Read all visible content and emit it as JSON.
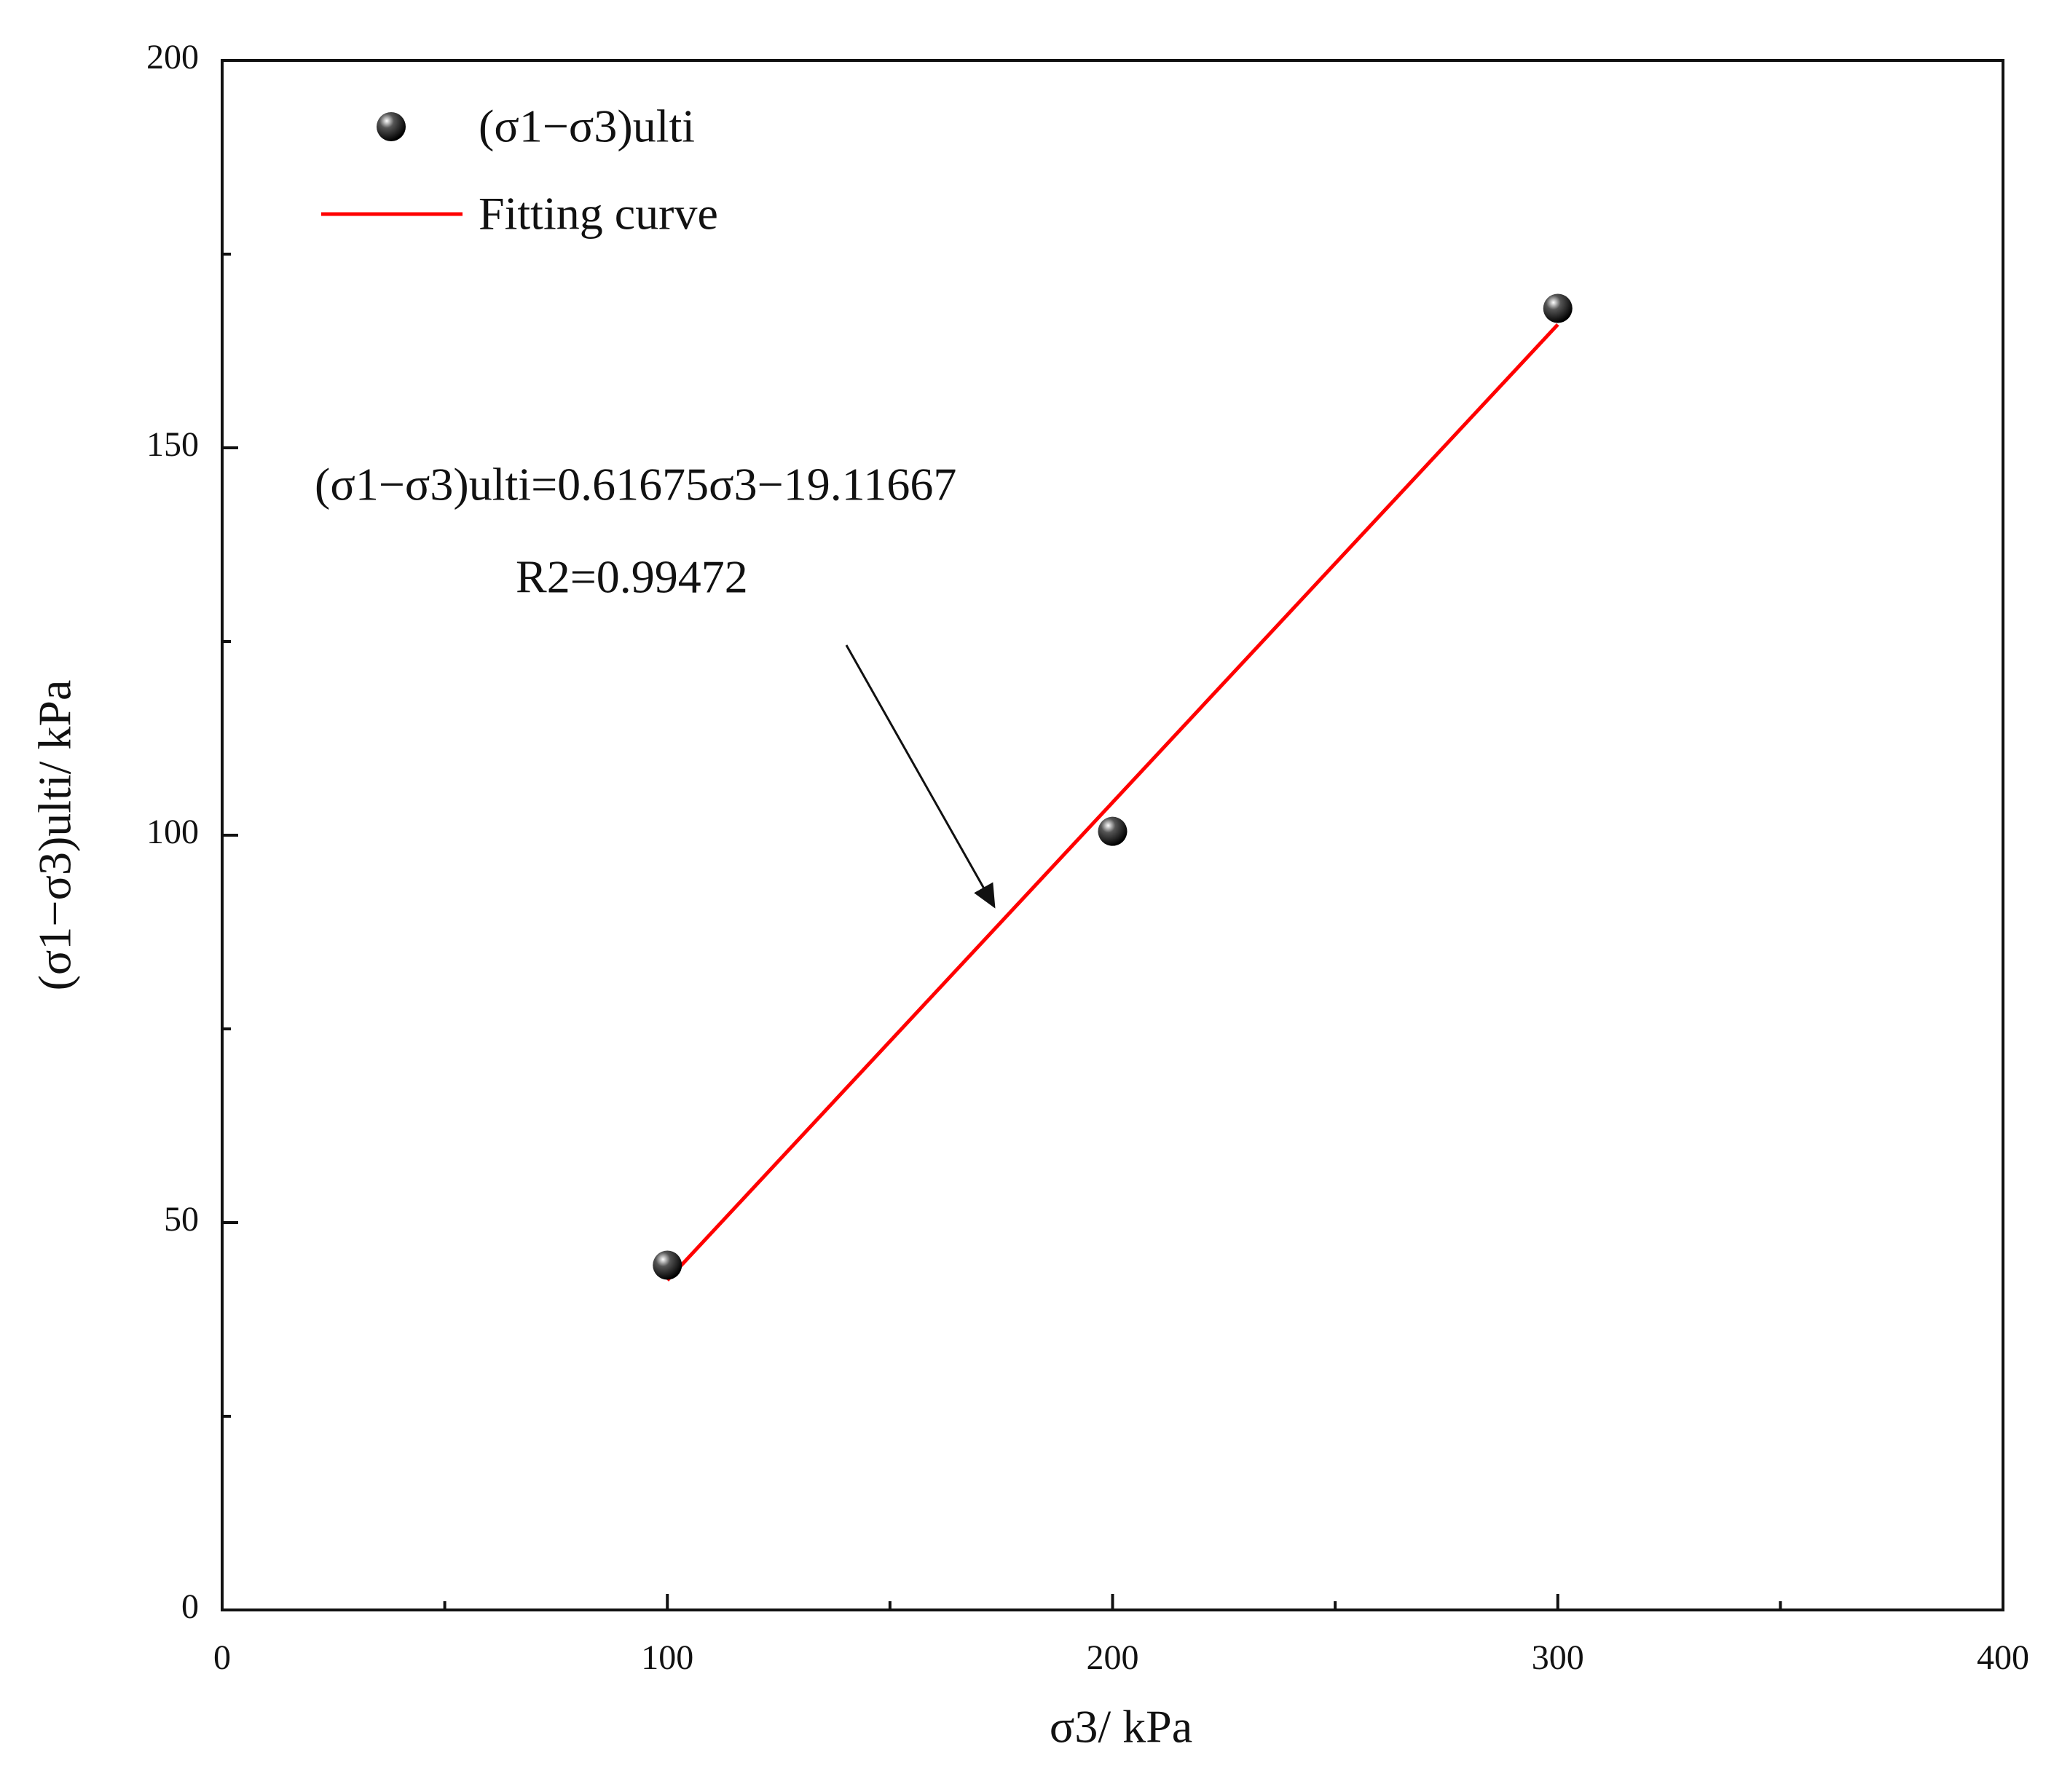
{
  "chart_data": {
    "type": "scatter",
    "xlabel": "σ3/ kPa",
    "ylabel": "(σ1−σ3)ulti/ kPa",
    "series": [
      {
        "name": "(σ1−σ3)ulti",
        "type": "scatter",
        "color": "#000000",
        "x": [
          100,
          200,
          300
        ],
        "values": [
          44.5,
          100.5,
          168
        ]
      },
      {
        "name": "Fitting curve",
        "type": "line",
        "color": "#ff0000",
        "x": [
          100,
          300
        ],
        "values": [
          42.56,
          165.91
        ]
      }
    ],
    "annotations": [
      "(σ1−σ3)ulti=0.61675σ3−19.11667",
      "R2=0.99472"
    ],
    "xlim": [
      0,
      400
    ],
    "xticks": [
      0,
      100,
      200,
      300,
      400
    ],
    "xticks_minor": [
      50,
      150,
      250,
      350
    ],
    "ylim": [
      0,
      200
    ],
    "yticks": [
      0,
      50,
      100,
      150,
      200
    ],
    "yticks_minor": [
      25,
      75,
      125,
      175
    ],
    "legend": "upper left",
    "grid": false
  }
}
